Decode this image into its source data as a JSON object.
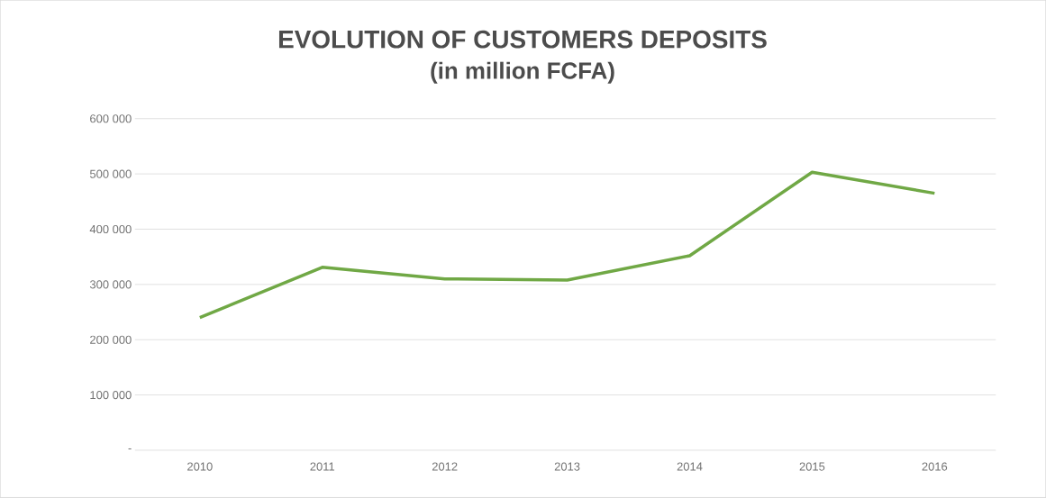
{
  "chart_data": {
    "type": "line",
    "title": "EVOLUTION OF CUSTOMERS DEPOSITS",
    "subtitle": "(in million FCFA)",
    "categories": [
      "2010",
      "2011",
      "2012",
      "2013",
      "2014",
      "2015",
      "2016"
    ],
    "series": [
      {
        "color": "#70a845",
        "values": [
          240000,
          331000,
          310000,
          308000,
          352000,
          503000,
          465000
        ]
      }
    ],
    "ylim": [
      0,
      600000
    ],
    "yticks": [
      {
        "value": 0,
        "label": "-"
      },
      {
        "value": 100000,
        "label": "100 000"
      },
      {
        "value": 200000,
        "label": "200 000"
      },
      {
        "value": 300000,
        "label": "300 000"
      },
      {
        "value": 400000,
        "label": "400 000"
      },
      {
        "value": 500000,
        "label": "500 000"
      },
      {
        "value": 600000,
        "label": "600 000"
      }
    ],
    "grid": "y",
    "marker": "none",
    "line_style": "solid"
  }
}
